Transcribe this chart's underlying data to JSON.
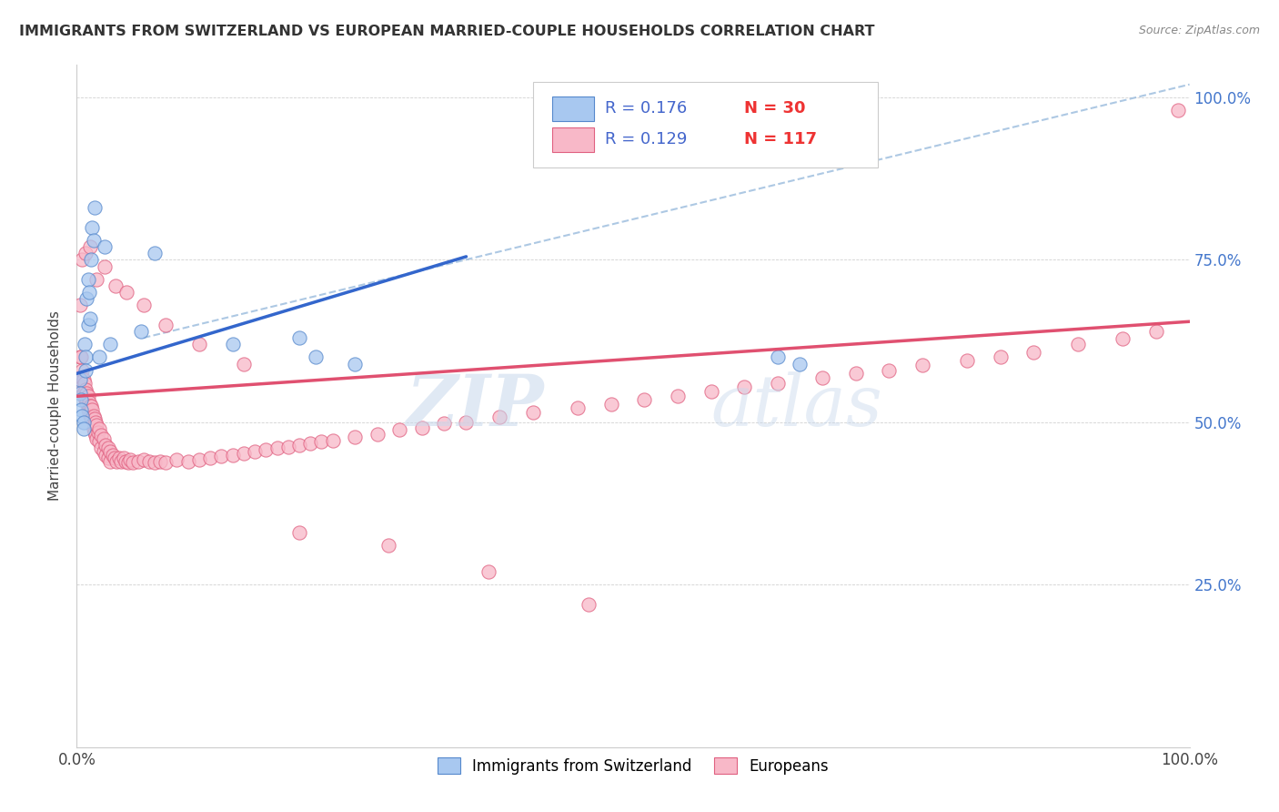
{
  "title": "IMMIGRANTS FROM SWITZERLAND VS EUROPEAN MARRIED-COUPLE HOUSEHOLDS CORRELATION CHART",
  "source": "Source: ZipAtlas.com",
  "ylabel": "Married-couple Households",
  "y_tick_labels": [
    "",
    "25.0%",
    "50.0%",
    "75.0%",
    "100.0%"
  ],
  "legend_r1": "R = 0.176",
  "legend_n1": "N = 30",
  "legend_r2": "R = 0.129",
  "legend_n2": "N = 117",
  "blue_fill": "#A8C8F0",
  "blue_edge": "#5588CC",
  "pink_fill": "#F8B8C8",
  "pink_edge": "#E06080",
  "line_blue_color": "#3366CC",
  "line_pink_color": "#E05070",
  "line_dashed_color": "#99BBDD",
  "swiss_x": [
    0.003,
    0.003,
    0.004,
    0.004,
    0.005,
    0.006,
    0.006,
    0.007,
    0.008,
    0.008,
    0.009,
    0.01,
    0.01,
    0.011,
    0.012,
    0.013,
    0.014,
    0.015,
    0.016,
    0.02,
    0.025,
    0.03,
    0.058,
    0.07,
    0.14,
    0.2,
    0.215,
    0.25,
    0.63,
    0.65
  ],
  "swiss_y": [
    0.565,
    0.545,
    0.535,
    0.52,
    0.51,
    0.5,
    0.49,
    0.62,
    0.6,
    0.58,
    0.69,
    0.65,
    0.72,
    0.7,
    0.66,
    0.75,
    0.8,
    0.78,
    0.83,
    0.6,
    0.77,
    0.62,
    0.64,
    0.76,
    0.62,
    0.63,
    0.6,
    0.59,
    0.6,
    0.59
  ],
  "euro_x": [
    0.003,
    0.004,
    0.004,
    0.005,
    0.005,
    0.006,
    0.006,
    0.007,
    0.007,
    0.008,
    0.008,
    0.009,
    0.009,
    0.01,
    0.01,
    0.011,
    0.011,
    0.012,
    0.012,
    0.013,
    0.013,
    0.014,
    0.014,
    0.015,
    0.015,
    0.016,
    0.016,
    0.017,
    0.017,
    0.018,
    0.018,
    0.019,
    0.02,
    0.02,
    0.022,
    0.022,
    0.024,
    0.024,
    0.026,
    0.026,
    0.028,
    0.028,
    0.03,
    0.03,
    0.032,
    0.034,
    0.036,
    0.038,
    0.04,
    0.042,
    0.044,
    0.046,
    0.048,
    0.05,
    0.055,
    0.06,
    0.065,
    0.07,
    0.075,
    0.08,
    0.09,
    0.1,
    0.11,
    0.12,
    0.13,
    0.14,
    0.15,
    0.16,
    0.17,
    0.18,
    0.19,
    0.2,
    0.21,
    0.22,
    0.23,
    0.25,
    0.27,
    0.29,
    0.31,
    0.33,
    0.35,
    0.38,
    0.41,
    0.45,
    0.48,
    0.51,
    0.54,
    0.57,
    0.6,
    0.63,
    0.67,
    0.7,
    0.73,
    0.76,
    0.8,
    0.83,
    0.86,
    0.9,
    0.94,
    0.97,
    0.99,
    0.003,
    0.005,
    0.008,
    0.012,
    0.018,
    0.025,
    0.035,
    0.045,
    0.06,
    0.08,
    0.11,
    0.15,
    0.2,
    0.28,
    0.37,
    0.46
  ],
  "euro_y": [
    0.6,
    0.6,
    0.57,
    0.58,
    0.555,
    0.565,
    0.545,
    0.56,
    0.54,
    0.55,
    0.535,
    0.545,
    0.53,
    0.54,
    0.52,
    0.53,
    0.515,
    0.525,
    0.51,
    0.525,
    0.508,
    0.52,
    0.505,
    0.51,
    0.49,
    0.505,
    0.485,
    0.5,
    0.48,
    0.495,
    0.475,
    0.485,
    0.49,
    0.47,
    0.48,
    0.46,
    0.475,
    0.455,
    0.465,
    0.45,
    0.46,
    0.445,
    0.455,
    0.44,
    0.45,
    0.445,
    0.44,
    0.445,
    0.44,
    0.445,
    0.44,
    0.438,
    0.442,
    0.438,
    0.44,
    0.442,
    0.44,
    0.438,
    0.44,
    0.438,
    0.442,
    0.44,
    0.442,
    0.445,
    0.448,
    0.45,
    0.452,
    0.455,
    0.458,
    0.46,
    0.462,
    0.465,
    0.468,
    0.47,
    0.472,
    0.478,
    0.482,
    0.488,
    0.492,
    0.498,
    0.5,
    0.508,
    0.515,
    0.522,
    0.528,
    0.535,
    0.54,
    0.548,
    0.555,
    0.56,
    0.568,
    0.575,
    0.58,
    0.588,
    0.595,
    0.6,
    0.608,
    0.62,
    0.628,
    0.64,
    0.98,
    0.68,
    0.75,
    0.76,
    0.77,
    0.72,
    0.74,
    0.71,
    0.7,
    0.68,
    0.65,
    0.62,
    0.59,
    0.33,
    0.31,
    0.27,
    0.22
  ],
  "swiss_line_x": [
    0.0,
    0.35
  ],
  "swiss_line_y": [
    0.575,
    0.755
  ],
  "euro_line_x": [
    0.0,
    1.0
  ],
  "euro_line_y": [
    0.54,
    0.655
  ],
  "dashed_line_x": [
    0.06,
    1.0
  ],
  "dashed_line_y": [
    0.63,
    1.02
  ],
  "xlim": [
    0.0,
    1.0
  ],
  "ylim": [
    0.0,
    1.05
  ]
}
